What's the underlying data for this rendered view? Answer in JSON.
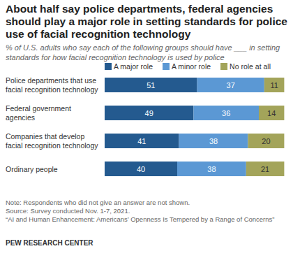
{
  "chart_data": {
    "type": "bar",
    "orientation": "horizontal",
    "stacked": true,
    "data_labels": true,
    "tick_labels": false,
    "grid": false,
    "title": "About half say police departments, federal agencies should play a major role in setting standards for police use of facial recognition technology",
    "subtitle": "% of U.S. adults who say each of the following groups should have ___ in setting standards for how facial recognition technology is used by police",
    "categories": [
      "Police departments that use facial recognition technology",
      "Federal government agencies",
      "Companies that develop facial recognition technology",
      "Ordinary people"
    ],
    "series": [
      {
        "name": "A major role",
        "color": "#245a8f",
        "values": [
          51,
          49,
          41,
          40
        ]
      },
      {
        "name": "A minor role",
        "color": "#5b98d4",
        "values": [
          37,
          36,
          38,
          38
        ]
      },
      {
        "name": "No role at all",
        "color": "#a3a45a",
        "values": [
          11,
          14,
          20,
          21
        ]
      }
    ],
    "xlim": [
      0,
      100
    ],
    "note": "Note: Respondents who did not give an answer are not shown.",
    "source": "Source: Survey conducted Nov. 1-7, 2021.",
    "report_title": "“AI and Human Enhancement: Americans’ Openness Is Tempered by a Range of Concerns”",
    "credit": "PEW RESEARCH CENTER"
  }
}
